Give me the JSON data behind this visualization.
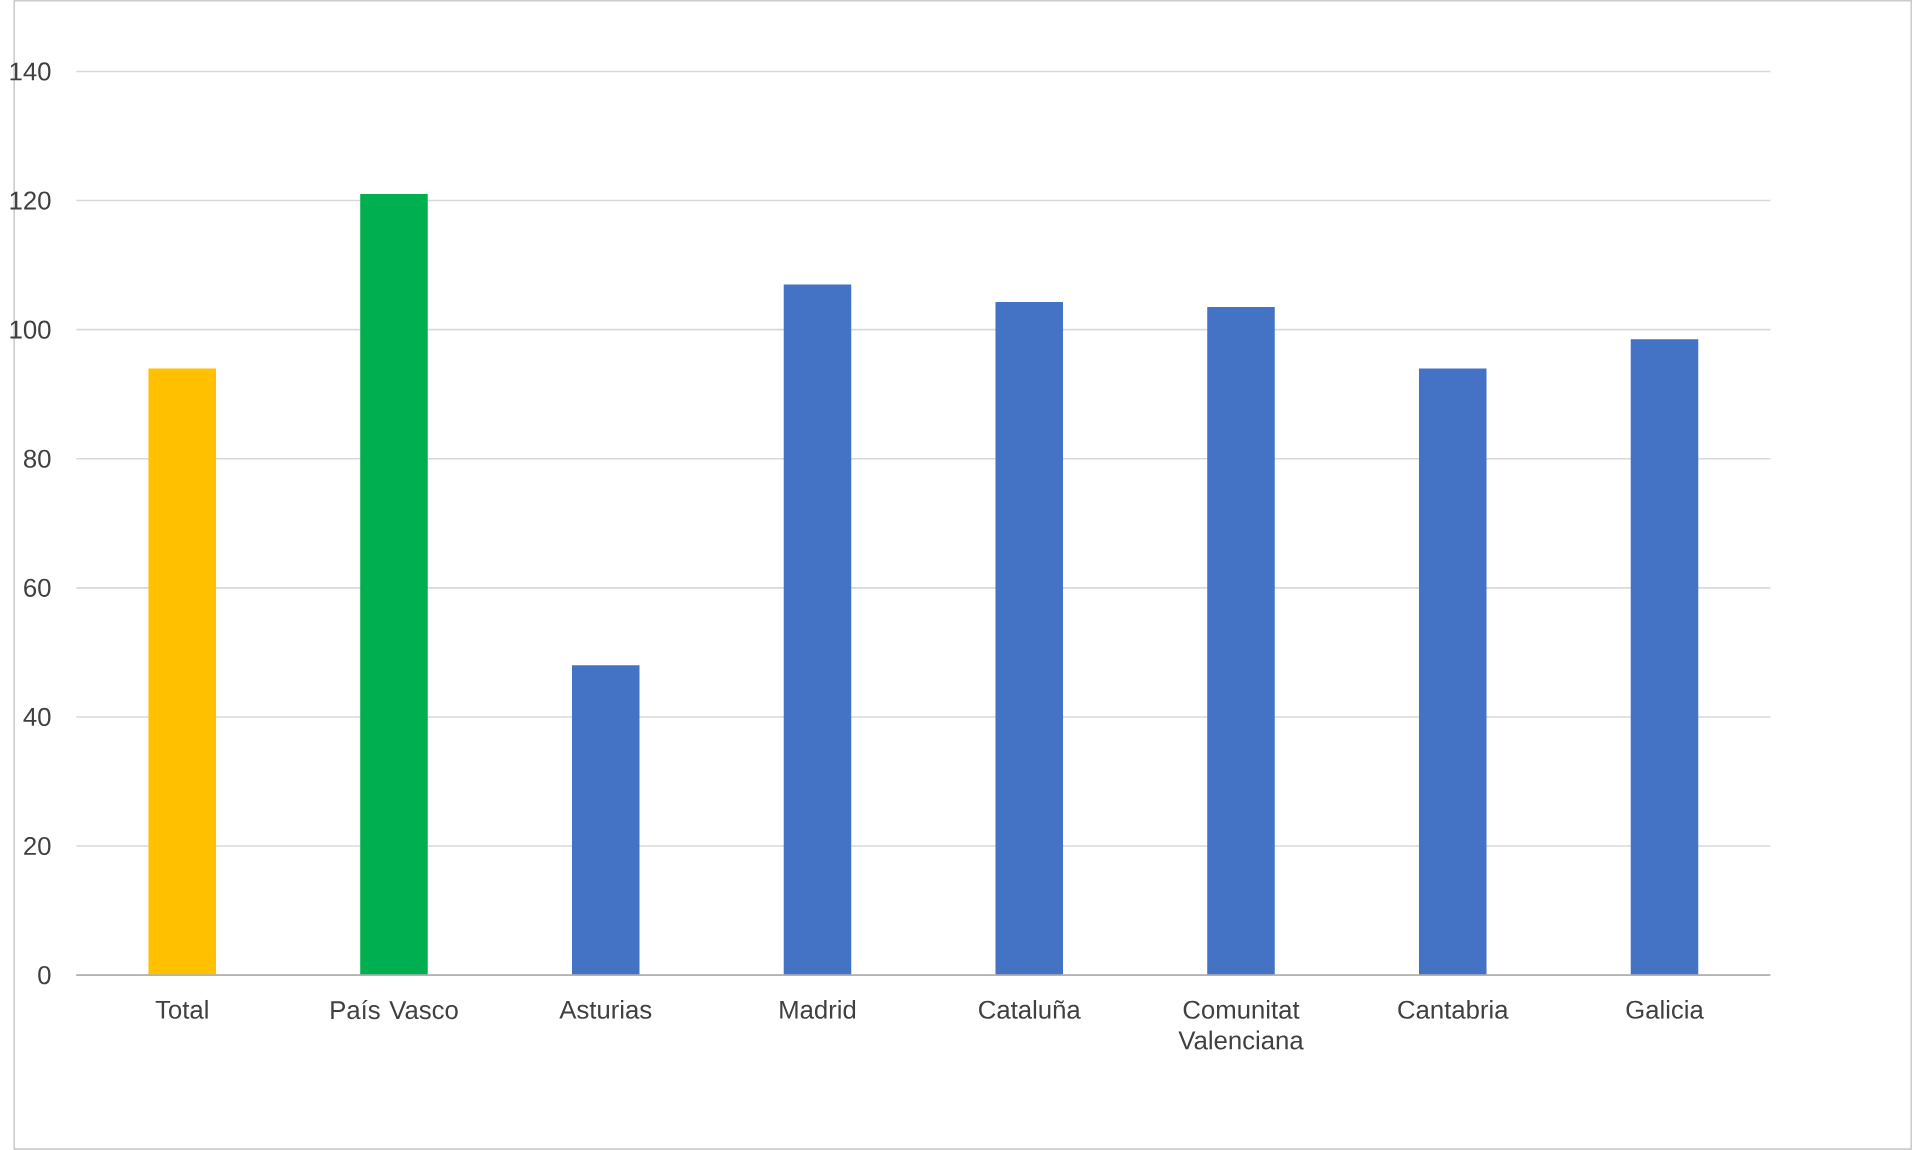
{
  "chart_data": {
    "type": "bar",
    "categories": [
      "Total",
      "País Vasco",
      "Asturias",
      "Madrid",
      "Cataluña",
      "Comunitat Valenciana",
      "Cantabria",
      "Galicia"
    ],
    "values": [
      94,
      121,
      48,
      107,
      104.3,
      103.5,
      94,
      98.5
    ],
    "colors": [
      "#ffc000",
      "#00b050",
      "#4472c4",
      "#4472c4",
      "#4472c4",
      "#4472c4",
      "#4472c4",
      "#4472c4"
    ],
    "ylim": [
      0,
      140
    ],
    "yticks": [
      0,
      20,
      40,
      60,
      80,
      100,
      120,
      140
    ],
    "grid": "y"
  }
}
